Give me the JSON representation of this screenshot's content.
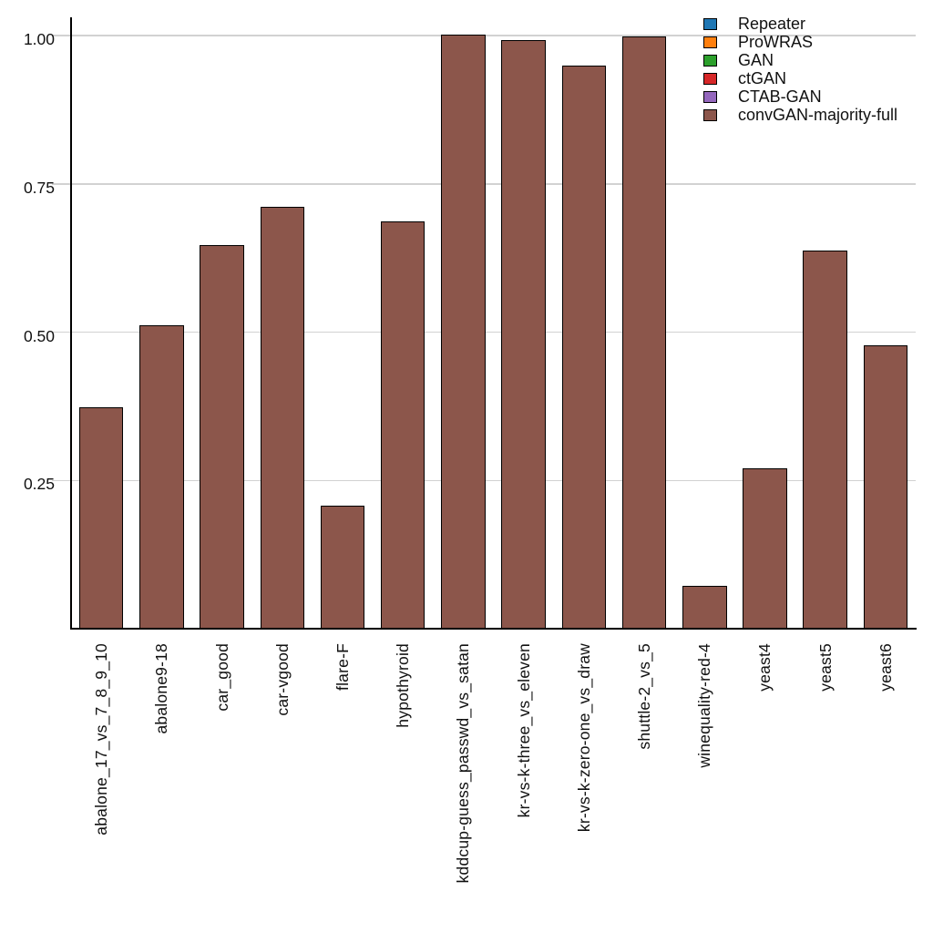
{
  "chart_data": {
    "type": "bar",
    "title": "",
    "xlabel": "",
    "ylabel": "",
    "categories": [
      "abalone_17_vs_7_8_9_10",
      "abalone9-18",
      "car_good",
      "car-vgood",
      "flare-F",
      "hypothyroid",
      "kddcup-guess_passwd_vs_satan",
      "kr-vs-k-three_vs_eleven",
      "kr-vs-k-zero-one_vs_draw",
      "shuttle-2_vs_5",
      "winequality-red-4",
      "yeast4",
      "yeast5",
      "yeast6"
    ],
    "series": [
      {
        "name": "convGAN-majority-full",
        "color": "#8c564b",
        "values": [
          0.374,
          0.512,
          0.646,
          0.711,
          0.207,
          0.686,
          1.002,
          0.993,
          0.95,
          0.998,
          0.072,
          0.27,
          0.637,
          0.477
        ]
      }
    ],
    "ylim": [
      0,
      1.03
    ],
    "yticks": [
      0.25,
      0.5,
      0.75,
      1.0
    ],
    "ytick_labels": [
      "0.25",
      "0.50",
      "0.75",
      "1.00"
    ],
    "grid": "horizontal",
    "grid_color": "#d2d2d2",
    "bar_edge_color": "#000000",
    "legend": {
      "position": "upper-right",
      "entries": [
        {
          "label": "Repeater",
          "color": "#1f77b4"
        },
        {
          "label": "ProWRAS",
          "color": "#ff7f0e"
        },
        {
          "label": "GAN",
          "color": "#2ca02c"
        },
        {
          "label": "ctGAN",
          "color": "#d62728"
        },
        {
          "label": "CTAB-GAN",
          "color": "#9467bd"
        },
        {
          "label": "convGAN-majority-full",
          "color": "#8c564b"
        }
      ]
    }
  }
}
